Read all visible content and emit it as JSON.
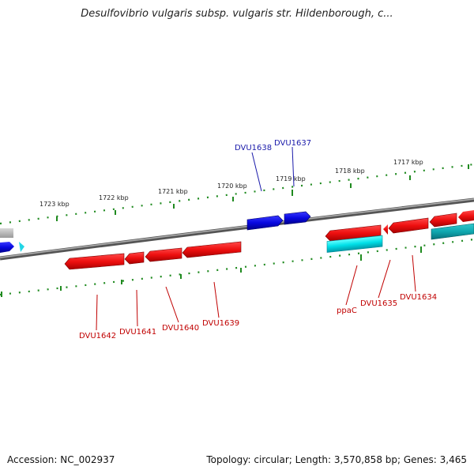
{
  "title": "Desulfovibrio vulgaris subsp. vulgaris str. Hildenborough, c...",
  "footer": {
    "accession": "Accession: NC_002937",
    "info": "Topology: circular; Length: 3,570,858 bp; Genes: 3,465"
  },
  "scale_ticks": [
    {
      "label": "1723 kbp"
    },
    {
      "label": "1722 kbp"
    },
    {
      "label": "1721 kbp"
    },
    {
      "label": "1720 kbp"
    },
    {
      "label": "1719 kbp"
    },
    {
      "label": "1718 kbp"
    },
    {
      "label": "1717 kbp"
    }
  ],
  "genes_top": [
    {
      "label": "DVU1638"
    },
    {
      "label": "DVU1637"
    }
  ],
  "genes_bottom": [
    {
      "label": "DVU1642"
    },
    {
      "label": "DVU1641"
    },
    {
      "label": "DVU1640"
    },
    {
      "label": "DVU1639"
    },
    {
      "label": "ppaC"
    },
    {
      "label": "DVU1635"
    },
    {
      "label": "DVU1634"
    }
  ],
  "colors": {
    "forward_gene": "#0a0adc",
    "reverse_gene": "#e8141e",
    "rna_gene": "#00cccc",
    "backbone": "#6e6e6e",
    "tick": "#1f8a1f",
    "label_top": "#1a1aaa",
    "label_bottom": "#c00000"
  }
}
